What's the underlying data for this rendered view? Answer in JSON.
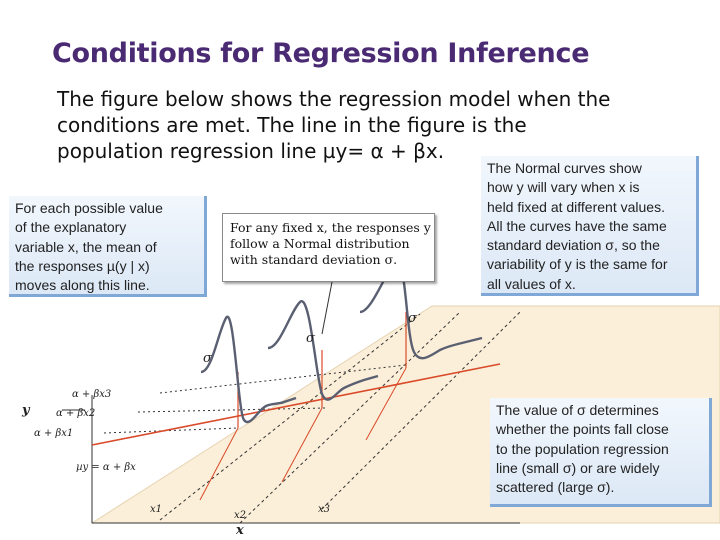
{
  "slide": {
    "title": "Conditions for Regression Inference",
    "body_lines": [
      "The figure below shows the regression model when the",
      "conditions are met. The line in the figure is the",
      "population regression line µy= α + βx."
    ]
  },
  "callouts": {
    "left": [
      "For each possible value",
      "of the explanatory",
      "variable x, the mean of",
      "the responses µ(y | x)",
      "moves along this line."
    ],
    "right": [
      "The Normal curves show",
      "how y will vary when x is",
      "held fixed at different values.",
      "All the curves have the same",
      "standard deviation σ, so the",
      "variability of y is the same for",
      "all values of x."
    ],
    "bottom": [
      "The value of σ determines",
      "whether the points fall close",
      "to the population regression",
      "line (small σ) or are widely",
      "scattered (large σ)."
    ]
  },
  "figure": {
    "inset_lines": [
      "For any fixed x, the responses y",
      "follow a Normal distribution",
      "with standard deviation σ."
    ],
    "y_axis_label": "y",
    "x_axis_label": "x",
    "x_ticks": [
      "x1",
      "x2",
      "x3"
    ],
    "mean_labels": [
      "α + βx3",
      "α + βx2",
      "α + βx1",
      "µy = α + βx"
    ],
    "sigma_symbol": "σ"
  },
  "colors": {
    "title": "#4a2a73",
    "callout_fill": "#dce8f6",
    "callout_border": "#7fa8d6",
    "plane": "#fbefd9",
    "curve": "#5a5f72",
    "regression_line": "#d94a2a"
  }
}
